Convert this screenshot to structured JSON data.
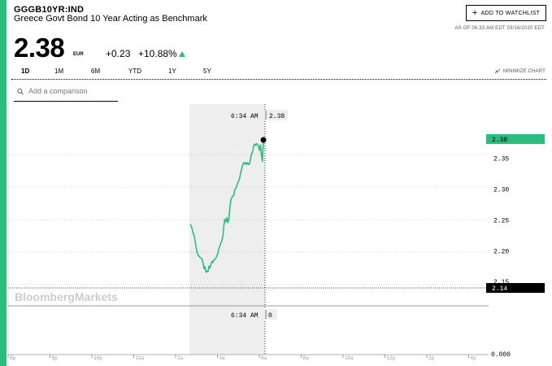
{
  "header": {
    "ticker": "GGGB10YR:IND",
    "name": "Greece Govt Bond 10 Year Acting as Benchmark",
    "watchlist_label": "ADD TO WATCHLIST",
    "as_of": "AS OF 06:33 AM EDT 03/16/2020 EDT"
  },
  "quote": {
    "price": "2.38",
    "currency": "EUR",
    "change": "+0.23",
    "change_pct": "+10.88%"
  },
  "ranges": [
    "1D",
    "1M",
    "6M",
    "YTD",
    "1Y",
    "5Y"
  ],
  "active_range": "1D",
  "minimize_label": "MINIMIZE CHART",
  "compare": {
    "placeholder": "Add a comparison"
  },
  "colors": {
    "accent": "#2bbd7e",
    "line": "#2bbd7e",
    "shade": "#eeeeee"
  },
  "chart_data": {
    "type": "line",
    "x_ticks": [
      "8p",
      "8p",
      "10p",
      "12a",
      "2a",
      "4a",
      "6a",
      "8a",
      "10a",
      "12p",
      "2p",
      "4p"
    ],
    "y_ticks": [
      "2.35",
      "2.30",
      "2.25",
      "2.20",
      "2.15"
    ],
    "ylim": [
      2.14,
      2.39
    ],
    "last_price_label": "2.38",
    "low_label": "2.14",
    "volume_zero_label": "0.000",
    "crosshair_time": "6:34 AM",
    "crosshair_value": "2.38",
    "volume_crosshair_value": "0",
    "watermark": "BloombergMarkets",
    "series": [
      {
        "values": [
          [
            2.243,
            2.24,
            2.235,
            2.229,
            2.224,
            2.216,
            2.205,
            2.198,
            2.193,
            2.191,
            2.189,
            2.188,
            2.186,
            2.18,
            2.171,
            2.174,
            2.165,
            2.167,
            2.166,
            2.175,
            2.172,
            2.178,
            2.183,
            2.181,
            2.185,
            2.186,
            2.188,
            2.192,
            2.196,
            2.204,
            2.208,
            2.213,
            2.216,
            2.223,
            2.241,
            2.251,
            2.247,
            2.254,
            2.246,
            2.25,
            2.268,
            2.282,
            2.286,
            2.289,
            2.29,
            2.299,
            2.301,
            2.305,
            2.31,
            2.313,
            2.318,
            2.326,
            2.333,
            2.339,
            2.343,
            2.341,
            2.343,
            2.34,
            2.343,
            2.34,
            2.341,
            2.349,
            2.357,
            2.36,
            2.369,
            2.373,
            2.371,
            2.374,
            2.372,
            2.37,
            2.363,
            2.372,
            2.355,
            2.345,
            2.38
          ]
        ]
      }
    ]
  }
}
